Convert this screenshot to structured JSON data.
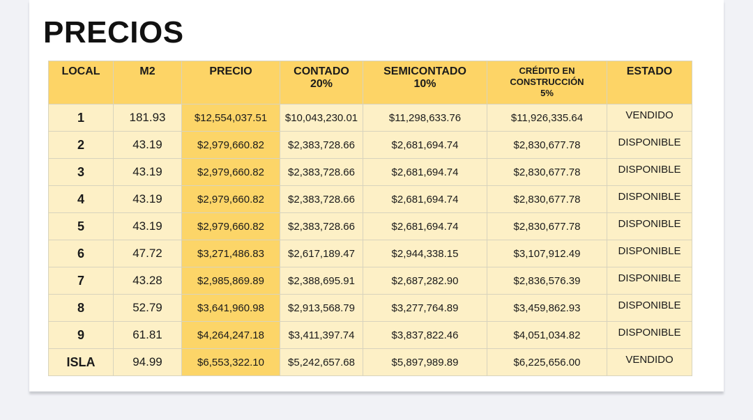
{
  "header": {
    "title": "PRECIOS"
  },
  "table": {
    "columns": [
      "LOCAL",
      "M2",
      "PRECIO",
      "CONTADO\n20%",
      "SEMICONTADO\n10%",
      "CRÉDITO EN\nCONSTRUCCIÓN\n5%",
      "ESTADO"
    ],
    "rows": [
      [
        "1",
        "181.93",
        "$12,554,037.51",
        "$10,043,230.01",
        "$11,298,633.76",
        "$11,926,335.64",
        "VENDIDO"
      ],
      [
        "2",
        "43.19",
        "$2,979,660.82",
        "$2,383,728.66",
        "$2,681,694.74",
        "$2,830,677.78",
        "DISPONIBLE"
      ],
      [
        "3",
        "43.19",
        "$2,979,660.82",
        "$2,383,728.66",
        "$2,681,694.74",
        "$2,830,677.78",
        "DISPONIBLE"
      ],
      [
        "4",
        "43.19",
        "$2,979,660.82",
        "$2,383,728.66",
        "$2,681,694.74",
        "$2,830,677.78",
        "DISPONIBLE"
      ],
      [
        "5",
        "43.19",
        "$2,979,660.82",
        "$2,383,728.66",
        "$2,681,694.74",
        "$2,830,677.78",
        "DISPONIBLE"
      ],
      [
        "6",
        "47.72",
        "$3,271,486.83",
        "$2,617,189.47",
        "$2,944,338.15",
        "$3,107,912.49",
        "DISPONIBLE"
      ],
      [
        "7",
        "43.28",
        "$2,985,869.89",
        "$2,388,695.91",
        "$2,687,282.90",
        "$2,836,576.39",
        "DISPONIBLE"
      ],
      [
        "8",
        "52.79",
        "$3,641,960.98",
        "$2,913,568.79",
        "$3,277,764.89",
        "$3,459,862.93",
        "DISPONIBLE"
      ],
      [
        "9",
        "61.81",
        "$4,264,247.18",
        "$3,411,397.74",
        "$3,837,822.46",
        "$4,051,034.82",
        "DISPONIBLE"
      ],
      [
        "ISLA",
        "94.99",
        "$6,553,322.10",
        "$5,242,657.68",
        "$5,897,989.89",
        "$6,225,656.00",
        "VENDIDO"
      ]
    ]
  }
}
